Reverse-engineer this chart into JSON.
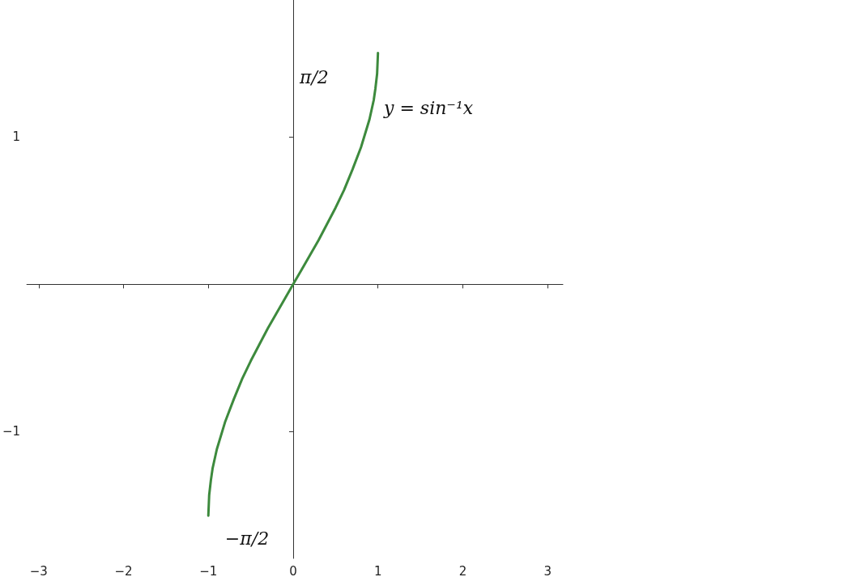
{
  "chart_data": {
    "type": "line",
    "x": [
      -1,
      -0.99,
      -0.97,
      -0.95,
      -0.9,
      -0.8,
      -0.7,
      -0.6,
      -0.5,
      -0.4,
      -0.3,
      -0.2,
      -0.1,
      0,
      0.1,
      0.2,
      0.3,
      0.4,
      0.5,
      0.6,
      0.7,
      0.8,
      0.9,
      0.95,
      0.97,
      0.99,
      1
    ],
    "series": [
      {
        "color": "#3d8a3d",
        "values": [
          -1.57,
          -1.43,
          -1.33,
          -1.25,
          -1.12,
          -0.93,
          -0.78,
          -0.64,
          -0.52,
          -0.41,
          -0.3,
          -0.2,
          -0.1,
          0,
          0.1,
          0.2,
          0.3,
          0.41,
          0.52,
          0.64,
          0.78,
          0.93,
          1.12,
          1.25,
          1.33,
          1.43,
          1.57
        ]
      }
    ],
    "xlim": [
      -3.14,
      3.18
    ],
    "ylim": [
      -1.86,
      1.93
    ],
    "xticks": [
      -3,
      -2,
      -1,
      0,
      1,
      2,
      3
    ],
    "yticks": [
      -1,
      1
    ],
    "annotations": [
      "π/2",
      "−π/2",
      "y = sin⁻¹x"
    ]
  }
}
